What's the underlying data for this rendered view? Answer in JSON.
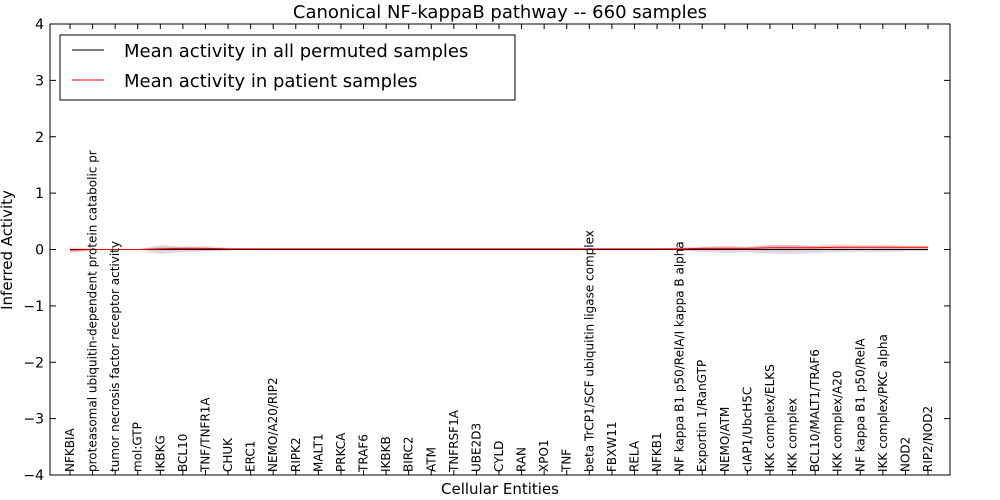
{
  "chart_data": {
    "type": "line",
    "title": "Canonical NF-kappaB pathway -- 660 samples",
    "xlabel": "Cellular Entities",
    "ylabel": "Inferred Activity",
    "ylim": [
      -4,
      4
    ],
    "yticks": [
      -4,
      -3,
      -2,
      -1,
      0,
      1,
      2,
      3,
      4
    ],
    "ytick_labels": [
      "−4",
      "−3",
      "−2",
      "−1",
      "0",
      "1",
      "2",
      "3",
      "4"
    ],
    "legend_position": "top-left",
    "categories": [
      "NFKBIA",
      "proteasomal ubiquitin-dependent protein catabolic pr",
      "tumor necrosis factor receptor activity",
      "mol:GTP",
      "IKBKG",
      "BCL10",
      "TNF/TNFR1A",
      "CHUK",
      "ERC1",
      "NEMO/A20/RIP2",
      "RIPK2",
      "MALT1",
      "PRKCA",
      "TRAF6",
      "IKBKB",
      "BIRC2",
      "ATM",
      "TNFRSF1A",
      "UBE2D3",
      "CYLD",
      "RAN",
      "XPO1",
      "TNF",
      "beta TrCP1/SCF ubiquitin ligase complex",
      "FBXW11",
      "RELA",
      "NFKB1",
      "NF kappa B1 p50/RelA/I kappa B alpha",
      "Exportin 1/RanGTP",
      "NEMO/ATM",
      "cIAP1/UbcH5C",
      "IKK complex/ELKS",
      "IKK complex",
      "BCL10/MALT1/TRAF6",
      "IKK complex/A20",
      "NF kappa B1 p50/RelA",
      "IKK complex/PKC alpha",
      "NOD2",
      "RIP2/NOD2"
    ],
    "series": [
      {
        "name": "Mean activity in all permuted samples",
        "color": "#000000",
        "values": [
          0.0,
          0.0,
          0.0,
          0.0,
          0.0,
          0.0,
          0.0,
          0.0,
          0.0,
          0.0,
          0.0,
          0.0,
          0.0,
          0.0,
          0.0,
          0.0,
          0.0,
          0.0,
          0.0,
          0.0,
          0.0,
          0.0,
          0.0,
          0.0,
          0.0,
          0.0,
          0.0,
          0.0,
          0.0,
          0.0,
          0.0,
          0.0,
          0.0,
          0.0,
          0.0,
          0.0,
          0.0,
          0.0,
          0.0
        ],
        "band": [
          0.0,
          0.0,
          0.0,
          0.0,
          0.08,
          0.05,
          0.03,
          0.02,
          0.0,
          0.0,
          0.0,
          0.0,
          0.0,
          0.0,
          0.0,
          0.0,
          0.0,
          0.0,
          0.0,
          0.0,
          0.0,
          0.0,
          0.0,
          0.0,
          0.0,
          0.0,
          0.0,
          0.02,
          0.04,
          0.06,
          0.05,
          0.07,
          0.08,
          0.06,
          0.05,
          0.04,
          0.05,
          0.03,
          0.03
        ],
        "band_color": "#888899"
      },
      {
        "name": "Mean activity in patient samples",
        "color": "#ff0000",
        "values": [
          -0.01,
          0.0,
          0.0,
          0.0,
          0.01,
          0.02,
          0.02,
          0.01,
          0.01,
          0.01,
          0.01,
          0.01,
          0.01,
          0.01,
          0.01,
          0.01,
          0.01,
          0.01,
          0.01,
          0.01,
          0.01,
          0.01,
          0.01,
          0.01,
          0.01,
          0.01,
          0.01,
          0.01,
          0.02,
          0.02,
          0.02,
          0.03,
          0.03,
          0.03,
          0.04,
          0.04,
          0.04,
          0.04,
          0.04
        ],
        "band": [
          0.05,
          0.02,
          0.0,
          0.0,
          0.03,
          0.03,
          0.04,
          0.02,
          0.01,
          0.01,
          0.01,
          0.01,
          0.01,
          0.01,
          0.01,
          0.01,
          0.01,
          0.01,
          0.01,
          0.01,
          0.01,
          0.01,
          0.01,
          0.01,
          0.01,
          0.01,
          0.01,
          0.03,
          0.03,
          0.04,
          0.03,
          0.05,
          0.05,
          0.04,
          0.05,
          0.04,
          0.04,
          0.03,
          0.03
        ],
        "band_color": "#ff6666"
      }
    ]
  }
}
